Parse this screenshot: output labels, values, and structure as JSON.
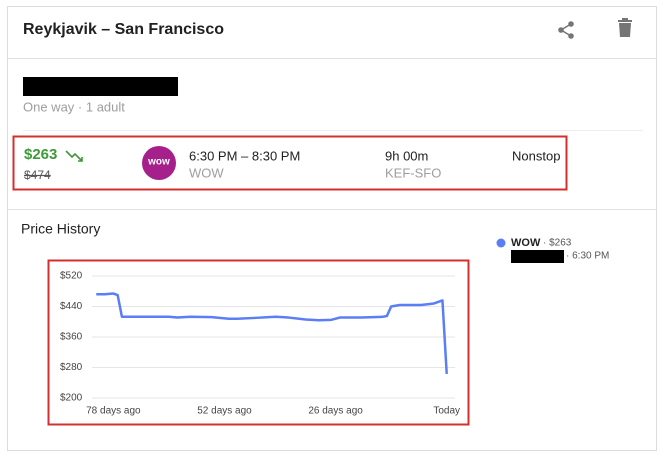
{
  "header": {
    "title": "Reykjavik – San Francisco"
  },
  "trip": {
    "summary": "One way · 1 adult"
  },
  "flight": {
    "price": "$263",
    "old_price": "$474",
    "logo_text": "wow",
    "times": "6:30 PM – 8:30 PM",
    "airline": "WOW",
    "duration": "9h 00m",
    "route": "KEF-SFO",
    "stops": "Nonstop"
  },
  "price_history": {
    "title": "Price History",
    "legend": {
      "price": "· $263",
      "time": "· 6:30 PM"
    },
    "chart_data": {
      "type": "line",
      "x": [
        -82,
        -80,
        -78,
        -77,
        -76,
        -74,
        -70,
        -65,
        -63,
        -60,
        -55,
        -51,
        -49,
        -45,
        -40,
        -37,
        -33,
        -30,
        -27,
        -25,
        -20,
        -15,
        -14,
        -13,
        -11,
        -6,
        -3,
        -1,
        0
      ],
      "series": [
        {
          "name": "WOW",
          "color": "#5a7ef5",
          "values": [
            472,
            472,
            474,
            470,
            413,
            413,
            413,
            413,
            411,
            413,
            412,
            408,
            408,
            410,
            413,
            411,
            406,
            404,
            405,
            411,
            411,
            413,
            415,
            440,
            444,
            444,
            448,
            456,
            263
          ]
        }
      ],
      "xlim": [
        -83,
        1
      ],
      "xticks": [
        {
          "value": -78,
          "label": "78 days ago"
        },
        {
          "value": -52,
          "label": "52 days ago"
        },
        {
          "value": -26,
          "label": "26 days ago"
        },
        {
          "value": 0,
          "label": "Today"
        }
      ],
      "ylim": [
        200,
        520
      ],
      "yticks": [
        {
          "value": 520,
          "label": "$520"
        },
        {
          "value": 440,
          "label": "$440"
        },
        {
          "value": 360,
          "label": "$360"
        },
        {
          "value": 280,
          "label": "$280"
        },
        {
          "value": 200,
          "label": "$200"
        }
      ],
      "grid": true
    }
  }
}
